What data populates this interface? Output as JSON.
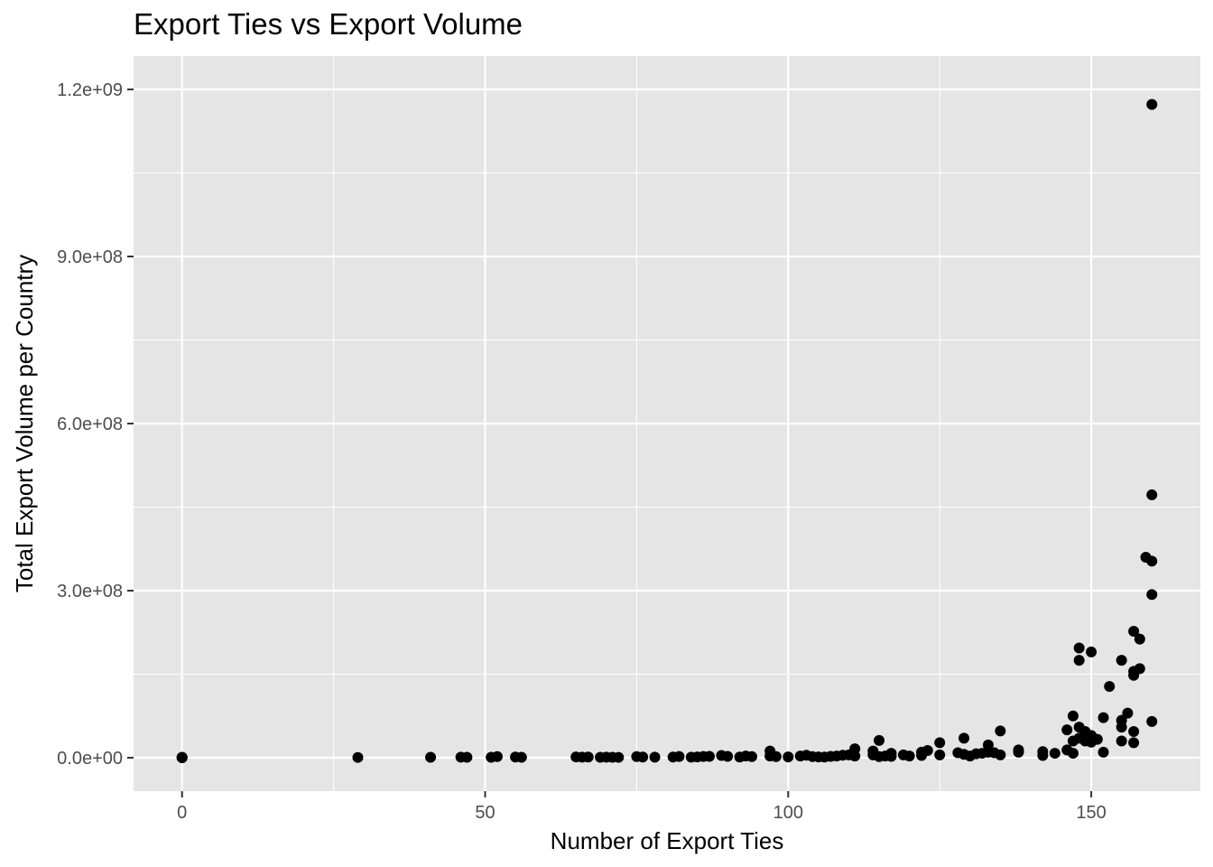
{
  "chart_data": {
    "type": "scatter",
    "title": "Export Ties vs Export Volume",
    "xlabel": "Number of Export Ties",
    "ylabel": "Total Export Volume per Country",
    "xlim": [
      -8,
      168
    ],
    "ylim": [
      -60000000,
      1260000000
    ],
    "x_ticks": [
      0,
      50,
      100,
      150
    ],
    "x_tick_labels": [
      "0",
      "50",
      "100",
      "150"
    ],
    "y_ticks": [
      0,
      300000000,
      600000000,
      900000000,
      1200000000
    ],
    "y_tick_labels": [
      "0.0e+00",
      "3.0e+08",
      "6.0e+08",
      "9.0e+08",
      "1.2e+09"
    ],
    "grid": true,
    "legend": "none",
    "colors": {
      "panel": "#e5e5e5",
      "grid": "#ffffff",
      "point": "#000000",
      "tick_text": "#4d4d4d"
    },
    "points": [
      [
        0,
        0
      ],
      [
        0,
        300000
      ],
      [
        0,
        800000
      ],
      [
        29,
        500000
      ],
      [
        41,
        800000
      ],
      [
        46,
        1000000
      ],
      [
        47,
        800000
      ],
      [
        51,
        800000
      ],
      [
        52,
        2000000
      ],
      [
        55,
        1200000
      ],
      [
        56,
        800000
      ],
      [
        65,
        1500000
      ],
      [
        66,
        1000000
      ],
      [
        67,
        1200000
      ],
      [
        69,
        800000
      ],
      [
        70,
        1000000
      ],
      [
        71,
        800000
      ],
      [
        72,
        700000
      ],
      [
        75,
        2000000
      ],
      [
        76,
        1200000
      ],
      [
        78,
        1000000
      ],
      [
        81,
        1200000
      ],
      [
        82,
        2200000
      ],
      [
        84,
        1000000
      ],
      [
        85,
        1500000
      ],
      [
        86,
        2200000
      ],
      [
        87,
        2500000
      ],
      [
        89,
        4000000
      ],
      [
        90,
        2500000
      ],
      [
        92,
        1200000
      ],
      [
        93,
        3000000
      ],
      [
        94,
        2000000
      ],
      [
        97,
        12000000
      ],
      [
        97,
        3000000
      ],
      [
        98,
        2000000
      ],
      [
        100,
        1500000
      ],
      [
        102,
        3000000
      ],
      [
        103,
        4500000
      ],
      [
        104,
        2000000
      ],
      [
        105,
        1500000
      ],
      [
        106,
        1200000
      ],
      [
        107,
        2500000
      ],
      [
        108,
        3000000
      ],
      [
        109,
        4500000
      ],
      [
        110,
        5000000
      ],
      [
        111,
        16000000
      ],
      [
        111,
        3000000
      ],
      [
        114,
        12000000
      ],
      [
        114,
        5000000
      ],
      [
        115,
        31000000
      ],
      [
        115,
        2000000
      ],
      [
        116,
        3000000
      ],
      [
        117,
        8000000
      ],
      [
        117,
        2500000
      ],
      [
        119,
        5000000
      ],
      [
        120,
        3000000
      ],
      [
        122,
        10000000
      ],
      [
        122,
        4000000
      ],
      [
        123,
        13000000
      ],
      [
        125,
        27000000
      ],
      [
        125,
        5000000
      ],
      [
        128,
        9000000
      ],
      [
        129,
        35000000
      ],
      [
        129,
        6000000
      ],
      [
        130,
        3000000
      ],
      [
        131,
        7000000
      ],
      [
        132,
        8000000
      ],
      [
        133,
        23000000
      ],
      [
        133,
        10000000
      ],
      [
        134,
        9000000
      ],
      [
        135,
        48000000
      ],
      [
        135,
        5000000
      ],
      [
        138,
        14000000
      ],
      [
        138,
        10000000
      ],
      [
        142,
        11000000
      ],
      [
        142,
        4000000
      ],
      [
        144,
        8000000
      ],
      [
        146,
        50000000
      ],
      [
        146,
        14000000
      ],
      [
        147,
        75000000
      ],
      [
        147,
        30000000
      ],
      [
        147,
        8000000
      ],
      [
        148,
        197000000
      ],
      [
        148,
        175000000
      ],
      [
        148,
        55000000
      ],
      [
        148,
        35000000
      ],
      [
        149,
        47000000
      ],
      [
        149,
        30000000
      ],
      [
        150,
        190000000
      ],
      [
        150,
        40000000
      ],
      [
        150,
        28000000
      ],
      [
        151,
        33000000
      ],
      [
        152,
        72000000
      ],
      [
        152,
        10000000
      ],
      [
        153,
        128000000
      ],
      [
        155,
        175000000
      ],
      [
        155,
        67000000
      ],
      [
        155,
        55000000
      ],
      [
        155,
        30000000
      ],
      [
        156,
        80000000
      ],
      [
        157,
        227000000
      ],
      [
        157,
        155000000
      ],
      [
        157,
        148000000
      ],
      [
        157,
        47000000
      ],
      [
        157,
        27000000
      ],
      [
        158,
        213000000
      ],
      [
        158,
        160000000
      ],
      [
        159,
        360000000
      ],
      [
        160,
        1173000000
      ],
      [
        160,
        472000000
      ],
      [
        160,
        353000000
      ],
      [
        160,
        293000000
      ],
      [
        160,
        65000000
      ]
    ]
  }
}
